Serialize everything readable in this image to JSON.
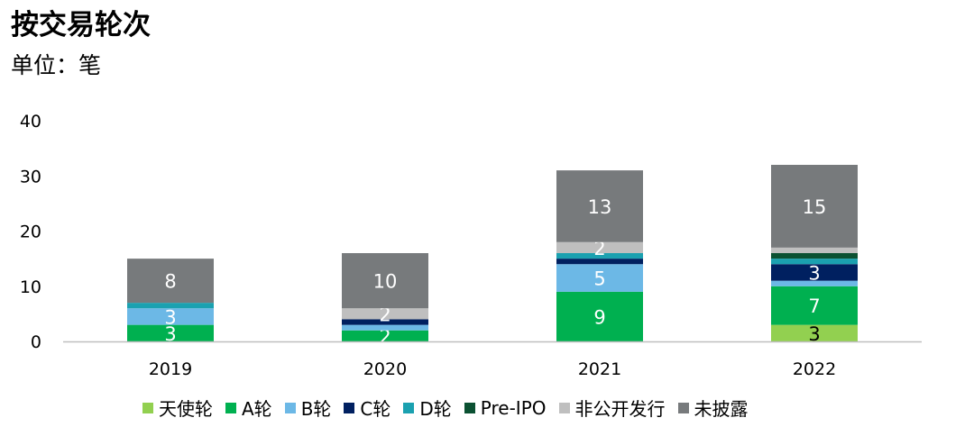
{
  "title": "按交易轮次",
  "subtitle": "单位：笔",
  "chart_data": {
    "type": "bar",
    "stacked": true,
    "categories": [
      "2019",
      "2020",
      "2021",
      "2022"
    ],
    "ylim": [
      0,
      40
    ],
    "yticks": [
      0,
      10,
      20,
      30,
      40
    ],
    "grid": false,
    "legend_position": "bottom",
    "series": [
      {
        "name": "天使轮",
        "color": "#92D050",
        "values": [
          0,
          0,
          0,
          3
        ],
        "labels": [
          "",
          "",
          "",
          "3"
        ]
      },
      {
        "name": "A轮",
        "color": "#00B050",
        "values": [
          3,
          2,
          9,
          7
        ],
        "labels": [
          "3",
          "2",
          "9",
          "7"
        ]
      },
      {
        "name": "B轮",
        "color": "#6CB8E6",
        "values": [
          3,
          1,
          5,
          1
        ],
        "labels": [
          "3",
          "",
          "5",
          ""
        ]
      },
      {
        "name": "C轮",
        "color": "#002060",
        "values": [
          0,
          1,
          1,
          3
        ],
        "labels": [
          "",
          "",
          "",
          "3"
        ]
      },
      {
        "name": "D轮",
        "color": "#1BA1B0",
        "values": [
          1,
          0,
          1,
          1
        ],
        "labels": [
          "",
          "",
          "",
          ""
        ]
      },
      {
        "name": "Pre-IPO",
        "color": "#0B5132",
        "values": [
          0,
          0,
          0,
          1
        ],
        "labels": [
          "",
          "",
          "",
          ""
        ]
      },
      {
        "name": "非公开发行",
        "color": "#BFBFBF",
        "values": [
          0,
          2,
          2,
          1
        ],
        "labels": [
          "",
          "2",
          "2",
          ""
        ]
      },
      {
        "name": "未披露",
        "color": "#777A7C",
        "values": [
          8,
          10,
          13,
          15
        ],
        "labels": [
          "8",
          "10",
          "13",
          "15"
        ]
      }
    ]
  }
}
